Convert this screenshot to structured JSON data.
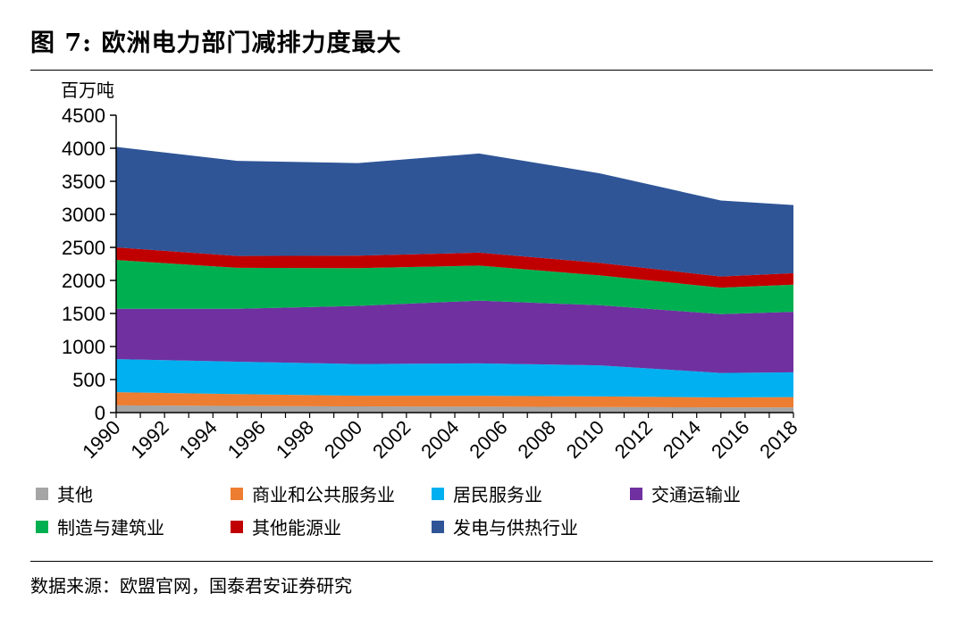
{
  "figure": {
    "title": "图 7: 欧洲电力部门减排力度最大",
    "source": "数据来源：欧盟官网，国泰君安证券研究"
  },
  "chart_data": {
    "type": "area",
    "stacked": true,
    "ylabel": "百万吨",
    "ylim": [
      0,
      4500
    ],
    "yticks": [
      0,
      500,
      1000,
      1500,
      2000,
      2500,
      3000,
      3500,
      4000,
      4500
    ],
    "xticks": [
      "1990",
      "1992",
      "1994",
      "1996",
      "1998",
      "2000",
      "2002",
      "2004",
      "2006",
      "2008",
      "2010",
      "2012",
      "2014",
      "2016",
      "2018"
    ],
    "x": [
      1990,
      1995,
      2000,
      2005,
      2010,
      2015,
      2018
    ],
    "legend_position": "bottom",
    "series": [
      {
        "name": "其他",
        "color": "#a5a5a5",
        "values": [
          110,
          100,
          95,
          90,
          85,
          80,
          80
        ]
      },
      {
        "name": "商业和公共服务业",
        "color": "#ed7d31",
        "values": [
          200,
          180,
          160,
          165,
          160,
          150,
          155
        ]
      },
      {
        "name": "居民服务业",
        "color": "#00b0f0",
        "values": [
          500,
          490,
          480,
          490,
          470,
          370,
          375
        ]
      },
      {
        "name": "交通运输业",
        "color": "#7030a0",
        "values": [
          760,
          800,
          880,
          950,
          910,
          890,
          915
        ]
      },
      {
        "name": "制造与建筑业",
        "color": "#00b050",
        "values": [
          740,
          620,
          570,
          530,
          450,
          400,
          410
        ]
      },
      {
        "name": "其他能源业",
        "color": "#c00000",
        "values": [
          190,
          180,
          190,
          195,
          190,
          170,
          175
        ]
      },
      {
        "name": "发电与供热行业",
        "color": "#2f5597",
        "values": [
          1520,
          1440,
          1400,
          1500,
          1355,
          1150,
          1030
        ]
      }
    ]
  }
}
